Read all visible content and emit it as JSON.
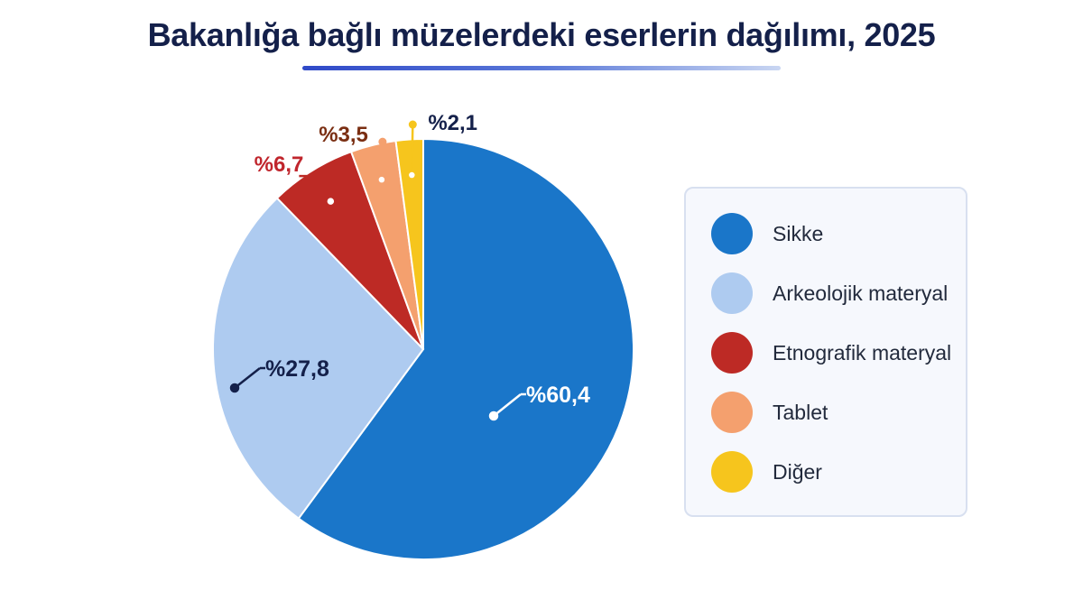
{
  "chart_data": {
    "type": "pie",
    "title": "Bakanlığa bağlı müzelerdeki eserlerin dağılımı, 2025",
    "slices": [
      {
        "name": "Sikke",
        "value": 60.4,
        "label": "%60,4",
        "color": "#1a76c9",
        "label_color": "#ffffff"
      },
      {
        "name": "Arkeolojik materyal",
        "value": 27.8,
        "label": "%27,8",
        "color": "#aecbf0",
        "label_color": "#14204a"
      },
      {
        "name": "Etnografik materyal",
        "value": 6.7,
        "label": "%6,7",
        "color": "#bd2a25",
        "label_color": "#c0262d"
      },
      {
        "name": "Tablet",
        "value": 3.5,
        "label": "%3,5",
        "color": "#f4a06e",
        "label_color": "#7a2e12"
      },
      {
        "name": "Diğer",
        "value": 2.1,
        "label": "%2,1",
        "color": "#f6c51d",
        "label_color": "#14204a"
      }
    ],
    "legend_position": "right"
  }
}
